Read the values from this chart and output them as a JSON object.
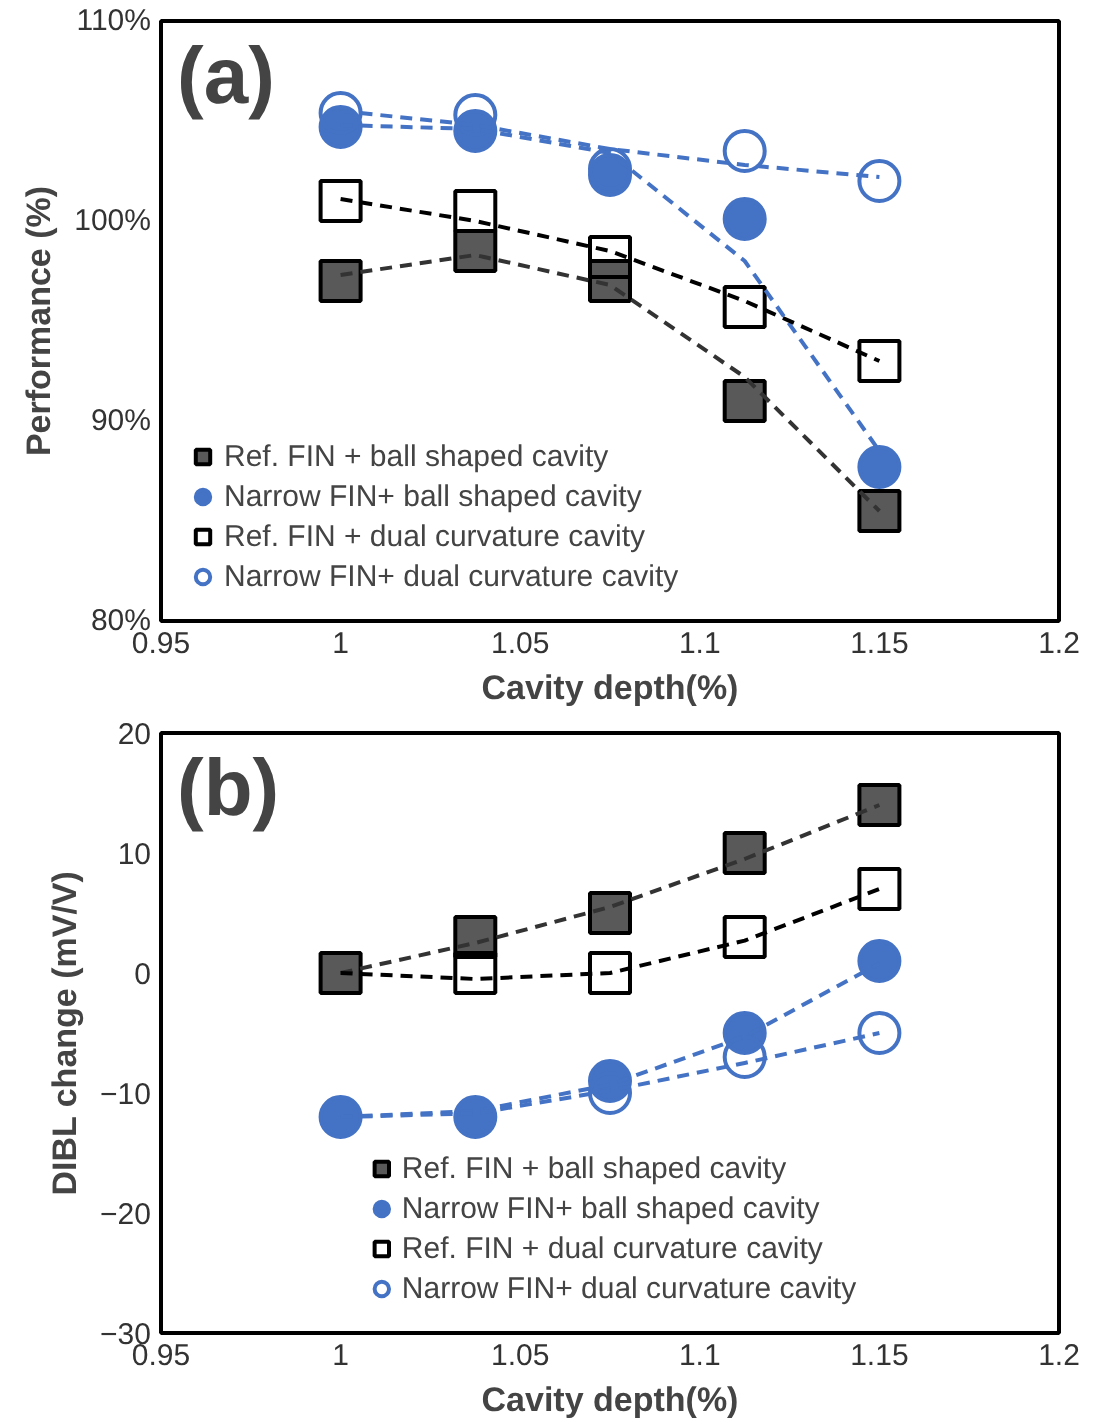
{
  "chart_data": [
    {
      "type": "scatter",
      "xlabel": "Cavity depth(%)",
      "ylabel": "Performance (%)",
      "annotations": [
        "(a)"
      ],
      "x": [
        1,
        1.0375,
        1.075,
        1.1125,
        1.15
      ],
      "xlim": [
        0.95,
        1.2
      ],
      "xticks": [
        0.95,
        1,
        1.05,
        1.1,
        1.15,
        1.2
      ],
      "ylim": [
        80,
        110
      ],
      "yticks": [
        {
          "value": 80,
          "label": "80%"
        },
        {
          "value": 90,
          "label": "90%"
        },
        {
          "value": 100,
          "label": "100%"
        },
        {
          "value": 110,
          "label": "110%"
        }
      ],
      "grid": false,
      "legend": "bottom left",
      "series": [
        {
          "name": "Ref. FIN + ball shaped cavity",
          "color": "#595959",
          "marker": "square",
          "values": [
            97,
            98.5,
            97,
            91,
            85.5
          ]
        },
        {
          "name": "Narrow FIN+ ball shaped cavity",
          "color": "#4472c4",
          "marker": "circle",
          "values": [
            104.7,
            104.5,
            102.3,
            100.1,
            87.7
          ]
        },
        {
          "name": "Ref. FIN + dual curvature cavity",
          "color": "#000000",
          "marker": "square_open",
          "values": [
            101,
            100.5,
            98.2,
            95.7,
            93
          ]
        },
        {
          "name": "Narrow FIN+ dual curvature cavity",
          "color": "#4472c4",
          "marker": "circle_open",
          "values": [
            105.4,
            105.3,
            102.6,
            103.5,
            102
          ]
        },
        {
          "type": "line",
          "line_style": "dashed",
          "color": "#333333",
          "x": [
            1,
            1.0375,
            1.075,
            1.1125,
            1.15
          ],
          "values": [
            97.3,
            98.3,
            96.8,
            92.2,
            85.5
          ]
        },
        {
          "type": "line",
          "line_style": "dashed",
          "color": "#4472c4",
          "x": [
            1,
            1.0375,
            1.075,
            1.1125,
            1.15
          ],
          "values": [
            104.8,
            104.6,
            103.4,
            98,
            88.5
          ]
        },
        {
          "type": "line",
          "line_style": "dashed",
          "color": "#000000",
          "x": [
            1,
            1.0375,
            1.075,
            1.1125,
            1.15
          ],
          "values": [
            101.1,
            100,
            98.5,
            96,
            93
          ]
        },
        {
          "type": "line",
          "line_style": "dashed",
          "color": "#4472c4",
          "x": [
            1,
            1.0375,
            1.075,
            1.1125,
            1.15
          ],
          "values": [
            105.5,
            104.8,
            103.6,
            102.8,
            102.2
          ]
        }
      ]
    },
    {
      "type": "scatter",
      "xlabel": "Cavity depth(%)",
      "ylabel": "DIBL change (mV/V)",
      "annotations": [
        "(b)"
      ],
      "x": [
        1,
        1.0375,
        1.075,
        1.1125,
        1.15
      ],
      "xlim": [
        0.95,
        1.2
      ],
      "xticks": [
        0.95,
        1,
        1.05,
        1.1,
        1.15,
        1.2
      ],
      "ylim": [
        -30,
        20
      ],
      "yticks": [
        -30,
        -20,
        -10,
        0,
        10,
        20
      ],
      "grid": false,
      "legend": "bottom",
      "series": [
        {
          "name": "Ref. FIN + ball shaped cavity",
          "color": "#595959",
          "marker": "square",
          "values": [
            0,
            3,
            5,
            10,
            14
          ]
        },
        {
          "name": "Narrow FIN+ ball shaped cavity",
          "color": "#4472c4",
          "marker": "circle",
          "values": [
            -12,
            -12,
            -9,
            -5,
            1
          ]
        },
        {
          "name": "Ref. FIN + dual curvature cavity",
          "color": "#000000",
          "marker": "square_open",
          "values": [
            null,
            0,
            0,
            3,
            7
          ]
        },
        {
          "name": "Narrow FIN+ dual curvature cavity",
          "color": "#4472c4",
          "marker": "circle_open",
          "values": [
            null,
            null,
            -10,
            -7,
            -5
          ]
        },
        {
          "type": "line",
          "line_style": "dashed",
          "color": "#333333",
          "x": [
            1,
            1.0375,
            1.075,
            1.1125,
            1.15
          ],
          "values": [
            0,
            2.5,
            5.5,
            9.5,
            14
          ]
        },
        {
          "type": "line",
          "line_style": "dashed",
          "color": "#4472c4",
          "x": [
            1,
            1.0375,
            1.075,
            1.1125,
            1.15
          ],
          "values": [
            -12,
            -11.5,
            -9.3,
            -5.3,
            0.8
          ]
        },
        {
          "type": "line",
          "line_style": "dashed",
          "color": "#000000",
          "x": [
            1,
            1.0375,
            1.075,
            1.1125,
            1.15
          ],
          "values": [
            0,
            -0.5,
            0,
            2.7,
            7
          ]
        },
        {
          "type": "line",
          "line_style": "dashed",
          "color": "#4472c4",
          "x": [
            1,
            1.0375,
            1.075,
            1.1125,
            1.15
          ],
          "values": [
            -12,
            -11.7,
            -9.8,
            -7.5,
            -5
          ]
        }
      ]
    }
  ]
}
